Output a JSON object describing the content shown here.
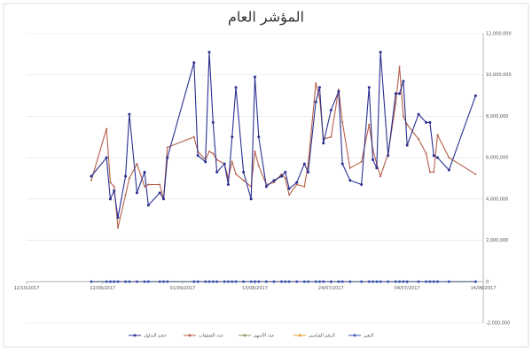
{
  "chart_data": {
    "type": "line",
    "title": "المؤشر العام",
    "x": [
      "2017-09-25",
      "2017-09-21",
      "2017-09-20",
      "2017-09-19",
      "2017-09-18",
      "2017-09-16",
      "2017-09-15",
      "2017-09-13",
      "2017-09-11",
      "2017-09-10",
      "2017-09-07",
      "2017-09-06",
      "2017-09-05",
      "2017-08-29",
      "2017-08-28",
      "2017-08-26",
      "2017-08-25",
      "2017-08-24",
      "2017-08-23",
      "2017-08-21",
      "2017-08-20",
      "2017-08-19",
      "2017-08-18",
      "2017-08-16",
      "2017-08-14",
      "2017-08-13",
      "2017-08-12",
      "2017-08-10",
      "2017-08-08",
      "2017-08-06",
      "2017-08-05",
      "2017-08-04",
      "2017-08-02",
      "2017-07-31",
      "2017-07-30",
      "2017-07-28",
      "2017-07-27",
      "2017-07-26",
      "2017-07-24",
      "2017-07-22",
      "2017-07-21",
      "2017-07-19",
      "2017-07-16",
      "2017-07-14",
      "2017-07-13",
      "2017-07-12",
      "2017-07-11",
      "2017-07-09",
      "2017-07-07",
      "2017-07-06",
      "2017-07-05",
      "2017-07-04",
      "2017-07-01",
      "2017-06-29",
      "2017-06-28",
      "2017-06-27",
      "2017-06-26",
      "2017-06-23",
      "2017-06-16"
    ],
    "series": [
      {
        "name": "حجم التداول",
        "color": "#2b2f8f",
        "values": [
          5100000,
          6000000,
          4000000,
          4400000,
          3100000,
          5100000,
          8100000,
          4300000,
          5300000,
          3700000,
          4300000,
          4000000,
          6000000,
          10600000,
          6100000,
          5800000,
          11100000,
          7700000,
          5300000,
          5700000,
          4700000,
          7000000,
          9400000,
          5300000,
          4000000,
          9900000,
          7000000,
          4600000,
          4900000,
          5100000,
          5300000,
          4500000,
          4800000,
          5700000,
          5300000,
          8700000,
          9400000,
          6700000,
          8300000,
          9200000,
          5700000,
          4900000,
          4700000,
          9400000,
          5900000,
          5500000,
          11100000,
          6100000,
          9100000,
          9100000,
          9700000,
          6600000,
          8100000,
          7700000,
          7700000,
          6100000,
          6000000,
          5400000,
          9000000
        ]
      },
      {
        "name": "عدد الصفقات",
        "color": "#b5604a",
        "values": [
          4900000,
          7400000,
          4800000,
          4600000,
          2600000,
          4200000,
          5000000,
          5700000,
          4600000,
          4700000,
          4700000,
          4000000,
          6500000,
          7000000,
          6300000,
          5900000,
          6300000,
          6200000,
          5900000,
          5700000,
          5000000,
          5800000,
          5200000,
          4900000,
          4600000,
          6300000,
          5600000,
          4700000,
          4800000,
          5200000,
          5000000,
          4200000,
          4700000,
          4600000,
          5700000,
          9600000,
          8900000,
          6900000,
          7000000,
          9300000,
          7700000,
          5500000,
          5800000,
          7600000,
          6400000,
          5700000,
          5100000,
          6200000,
          8600000,
          10400000,
          8000000,
          7600000,
          6900000,
          6200000,
          5300000,
          5300000,
          7100000,
          6000000,
          5200000
        ]
      },
      {
        "name": "عدد الأسهم",
        "color": "#8a9a5b",
        "values": [
          0,
          0,
          0,
          0,
          0,
          0,
          0,
          0,
          0,
          0,
          0,
          0,
          0,
          0,
          0,
          0,
          0,
          0,
          0,
          0,
          0,
          0,
          0,
          0,
          0,
          0,
          0,
          0,
          0,
          0,
          0,
          0,
          0,
          0,
          0,
          0,
          0,
          0,
          0,
          0,
          0,
          0,
          0,
          0,
          0,
          0,
          0,
          0,
          0,
          0,
          0,
          0,
          0,
          0,
          0,
          0,
          0,
          0,
          0
        ]
      },
      {
        "name": "الرقم القياسي",
        "color": "#e0a030",
        "values": [
          0,
          0,
          0,
          0,
          0,
          0,
          0,
          0,
          0,
          0,
          0,
          0,
          0,
          0,
          0,
          0,
          0,
          0,
          0,
          0,
          0,
          0,
          0,
          0,
          0,
          0,
          0,
          0,
          0,
          0,
          0,
          0,
          0,
          0,
          0,
          0,
          0,
          0,
          0,
          0,
          0,
          0,
          0,
          0,
          0,
          0,
          0,
          0,
          0,
          0,
          0,
          0,
          0,
          0,
          0,
          0,
          0,
          0,
          0
        ]
      },
      {
        "name": "التغير",
        "color": "#3a55b8",
        "values": [
          0,
          0,
          0,
          0,
          0,
          0,
          0,
          0,
          0,
          0,
          0,
          0,
          0,
          0,
          0,
          0,
          0,
          0,
          0,
          0,
          0,
          0,
          0,
          0,
          0,
          0,
          0,
          0,
          0,
          0,
          0,
          0,
          0,
          0,
          0,
          0,
          0,
          0,
          0,
          0,
          0,
          0,
          0,
          0,
          0,
          0,
          0,
          0,
          0,
          0,
          0,
          0,
          0,
          0,
          0,
          0,
          0,
          0,
          0
        ]
      }
    ],
    "xlim": [
      "2017-10-12",
      "2017-06-14"
    ],
    "xticks": [
      {
        "value": "2017-10-12",
        "label": "12/10/2017"
      },
      {
        "value": "2017-09-22",
        "label": "22/09/2017"
      },
      {
        "value": "2017-09-01",
        "label": "01/09/2017"
      },
      {
        "value": "2017-08-13",
        "label": "13/08/2017"
      },
      {
        "value": "2017-07-24",
        "label": "24/07/2017"
      },
      {
        "value": "2017-07-04",
        "label": "04/07/2017"
      },
      {
        "value": "2017-06-14",
        "label": "14/06/2017"
      }
    ],
    "ylim": [
      -2000000,
      12000000
    ],
    "yticks": [
      {
        "value": -2000000,
        "label": "-2,000,000"
      },
      0,
      {
        "value": 2000000,
        "label": "2,000,000"
      },
      {
        "value": 4000000,
        "label": "4,000,000"
      },
      {
        "value": 6000000,
        "label": "6,000,000"
      },
      {
        "value": 8000000,
        "label": "8,000,000"
      },
      {
        "value": 10000000,
        "label": "10,000,000"
      },
      {
        "value": 12000000,
        "label": "12,000,000"
      }
    ],
    "grid": true,
    "legend": "bottom"
  }
}
